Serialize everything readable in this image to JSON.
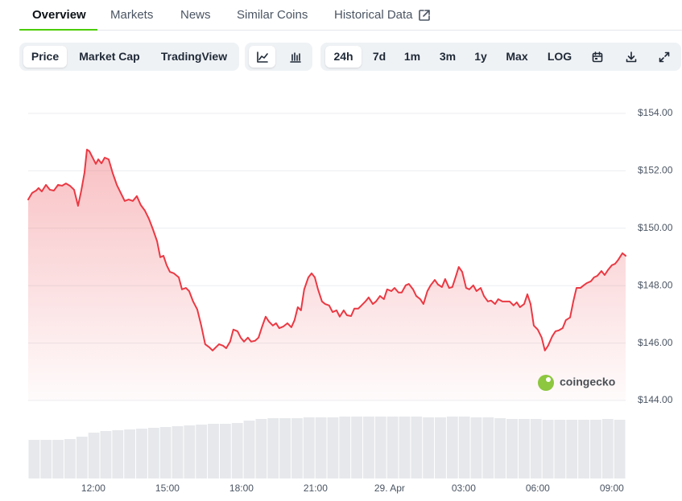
{
  "tabs": [
    "Overview",
    "Markets",
    "News",
    "Similar Coins",
    "Historical Data"
  ],
  "toolbar": {
    "views": [
      "Price",
      "Market Cap",
      "TradingView"
    ],
    "ranges": [
      "24h",
      "7d",
      "1m",
      "3m",
      "1y",
      "Max",
      "LOG"
    ]
  },
  "watermark": "coingecko",
  "chart_data": {
    "type": "area",
    "color": "#ea3943",
    "x": [
      9.36,
      9.52,
      9.68,
      9.78,
      9.91,
      10.08,
      10.24,
      10.4,
      10.57,
      10.73,
      10.89,
      11.05,
      11.22,
      11.38,
      11.51,
      11.64,
      11.74,
      11.84,
      11.97,
      12.1,
      12.2,
      12.33,
      12.46,
      12.62,
      12.78,
      12.95,
      13.11,
      13.27,
      13.43,
      13.6,
      13.76,
      13.92,
      14.09,
      14.25,
      14.41,
      14.58,
      14.71,
      14.84,
      14.97,
      15.1,
      15.26,
      15.46,
      15.59,
      15.75,
      15.88,
      16.04,
      16.21,
      16.37,
      16.53,
      16.7,
      16.83,
      16.96,
      17.09,
      17.25,
      17.38,
      17.54,
      17.67,
      17.84,
      17.97,
      18.1,
      18.26,
      18.39,
      18.55,
      18.69,
      18.85,
      18.98,
      19.11,
      19.27,
      19.4,
      19.53,
      19.7,
      19.86,
      20.02,
      20.15,
      20.28,
      20.41,
      20.54,
      20.71,
      20.84,
      20.97,
      21.1,
      21.26,
      21.39,
      21.55,
      21.69,
      21.85,
      21.98,
      22.14,
      22.27,
      22.44,
      22.57,
      22.73,
      22.86,
      23.02,
      23.15,
      23.32,
      23.45,
      23.61,
      23.77,
      23.9,
      24.07,
      24.2,
      24.36,
      24.49,
      24.65,
      24.78,
      24.95,
      25.08,
      25.24,
      25.37,
      25.53,
      25.66,
      25.83,
      25.96,
      26.12,
      26.25,
      26.41,
      26.54,
      26.67,
      26.8,
      26.94,
      27.1,
      27.23,
      27.39,
      27.52,
      27.69,
      27.82,
      27.98,
      28.11,
      28.27,
      28.4,
      28.57,
      28.7,
      28.86,
      29.02,
      29.15,
      29.28,
      29.45,
      29.58,
      29.71,
      29.84,
      30.0,
      30.16,
      30.29,
      30.42,
      30.59,
      30.72,
      30.85,
      31.01,
      31.14,
      31.31,
      31.44,
      31.57,
      31.73,
      31.86,
      31.99,
      32.15,
      32.28,
      32.41,
      32.58,
      32.71,
      32.84,
      33.0,
      33.13,
      33.26,
      33.43,
      33.56
    ],
    "values": [
      151.0,
      151.23,
      151.31,
      151.4,
      151.28,
      151.51,
      151.34,
      151.31,
      151.51,
      151.48,
      151.56,
      151.48,
      151.34,
      150.78,
      151.31,
      151.93,
      152.74,
      152.68,
      152.46,
      152.24,
      152.4,
      152.26,
      152.46,
      152.4,
      151.93,
      151.51,
      151.23,
      150.95,
      151.0,
      150.95,
      151.12,
      150.81,
      150.61,
      150.33,
      149.97,
      149.55,
      148.99,
      149.04,
      148.71,
      148.48,
      148.43,
      148.29,
      147.87,
      147.92,
      147.81,
      147.45,
      147.17,
      146.61,
      145.96,
      145.85,
      145.74,
      145.85,
      145.96,
      145.91,
      145.82,
      146.05,
      146.47,
      146.41,
      146.19,
      146.05,
      146.19,
      146.05,
      146.08,
      146.19,
      146.61,
      146.92,
      146.75,
      146.61,
      146.69,
      146.52,
      146.58,
      146.69,
      146.55,
      146.8,
      147.25,
      147.14,
      147.87,
      148.29,
      148.43,
      148.29,
      147.87,
      147.45,
      147.36,
      147.31,
      147.08,
      147.14,
      146.92,
      147.14,
      146.97,
      146.94,
      147.2,
      147.2,
      147.31,
      147.45,
      147.59,
      147.36,
      147.45,
      147.64,
      147.53,
      147.87,
      147.81,
      147.92,
      147.76,
      147.76,
      148.01,
      148.06,
      147.87,
      147.64,
      147.53,
      147.36,
      147.81,
      148.01,
      148.2,
      148.04,
      147.95,
      148.23,
      147.92,
      147.95,
      148.29,
      148.65,
      148.48,
      147.92,
      147.87,
      148.01,
      147.81,
      147.92,
      147.64,
      147.45,
      147.48,
      147.36,
      147.53,
      147.45,
      147.45,
      147.45,
      147.31,
      147.42,
      147.25,
      147.36,
      147.7,
      147.36,
      146.61,
      146.47,
      146.19,
      145.74,
      145.91,
      146.24,
      146.41,
      146.44,
      146.52,
      146.8,
      146.89,
      147.45,
      147.92,
      147.92,
      148.01,
      148.09,
      148.15,
      148.29,
      148.34,
      148.51,
      148.37,
      148.54,
      148.71,
      148.76,
      148.9,
      149.13,
      149.04
    ],
    "xlim": [
      9.36,
      33.56
    ],
    "xticks": [
      {
        "value": 12,
        "label": "12:00"
      },
      {
        "value": 15,
        "label": "15:00"
      },
      {
        "value": 18,
        "label": "18:00"
      },
      {
        "value": 21,
        "label": "21:00"
      },
      {
        "value": 24,
        "label": "29. Apr"
      },
      {
        "value": 27,
        "label": "03:00"
      },
      {
        "value": 30,
        "label": "06:00"
      },
      {
        "value": 33,
        "label": "09:00"
      }
    ],
    "ylim": [
      144,
      154
    ],
    "yticks": [
      {
        "value": 144,
        "label": "$144.00"
      },
      {
        "value": 146,
        "label": "$146.00"
      },
      {
        "value": 148,
        "label": "$148.00"
      },
      {
        "value": 150,
        "label": "$150.00"
      },
      {
        "value": 152,
        "label": "$152.00"
      },
      {
        "value": 154,
        "label": "$154.00"
      }
    ],
    "grid": true,
    "volume": {
      "color": "#e6e8eb",
      "ylim": [
        0,
        80
      ],
      "values": [
        48,
        48,
        48,
        49,
        52,
        57,
        59,
        60,
        61,
        62,
        63,
        64,
        65,
        66,
        67,
        68,
        68,
        69,
        72,
        74,
        75,
        75,
        75,
        76,
        76,
        76,
        77,
        77,
        77,
        77,
        77,
        77,
        77,
        76,
        76,
        77,
        77,
        76,
        76,
        75,
        74,
        74,
        74,
        73,
        73,
        73,
        73,
        73,
        74,
        73
      ]
    }
  }
}
